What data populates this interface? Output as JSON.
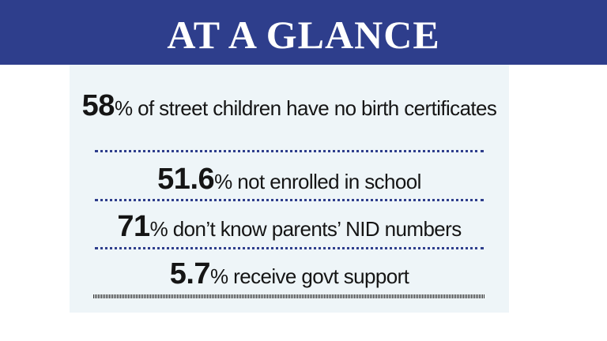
{
  "header": {
    "title": "AT A GLANCE"
  },
  "stats": [
    {
      "value": "58",
      "text": "% of street children have no birth certificates"
    },
    {
      "value": "51.6",
      "text": "% not enrolled in school"
    },
    {
      "value": "71",
      "text": "% don’t know parents’ NID numbers"
    },
    {
      "value": "5.7",
      "text": "% receive govt support"
    }
  ],
  "colors": {
    "banner": "#2e3e8c",
    "panel": "#eef5f8",
    "text": "#151515",
    "divider": "#2e3e8c"
  }
}
